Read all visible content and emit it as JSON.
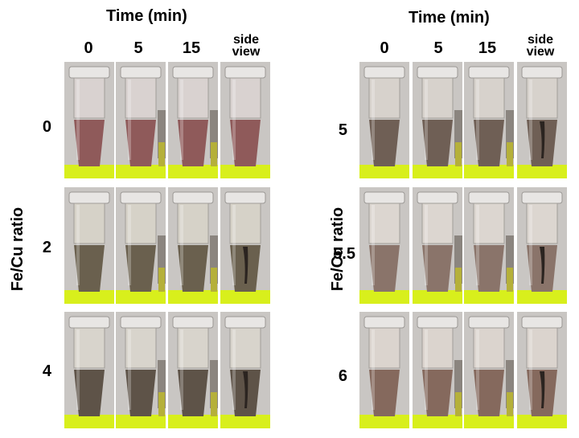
{
  "left_figure": {
    "title": "Time (min)",
    "columns": [
      "0",
      "5",
      "15",
      "side\nview"
    ],
    "row_axis_label": "Fe/Cu ratio",
    "rows": [
      {
        "label": "0",
        "liquid": "#8f5a5a",
        "top": "#d9d2d0",
        "dark": false
      },
      {
        "label": "2",
        "liquid": "#6a604e",
        "top": "#d6d2c8",
        "dark": true
      },
      {
        "label": "4",
        "liquid": "#5e5348",
        "top": "#d8d4cc",
        "dark": true
      }
    ]
  },
  "right_figure": {
    "title": "Time (min)",
    "columns": [
      "0",
      "5",
      "15",
      "side\nview"
    ],
    "row_axis_label": "Fe/Cu ratio",
    "rows": [
      {
        "label": "5",
        "liquid": "#6f5f55",
        "top": "#d7d2cc",
        "dark": true
      },
      {
        "label": "5.5",
        "liquid": "#8a746a",
        "top": "#dcd6d0",
        "dark": true
      },
      {
        "label": "6",
        "liquid": "#85695d",
        "top": "#dbd4ce",
        "dark": true
      }
    ]
  },
  "colors": {
    "green_base": "#d8ef1c",
    "background": "#c9c6c3",
    "magnet": "#8b857f"
  }
}
